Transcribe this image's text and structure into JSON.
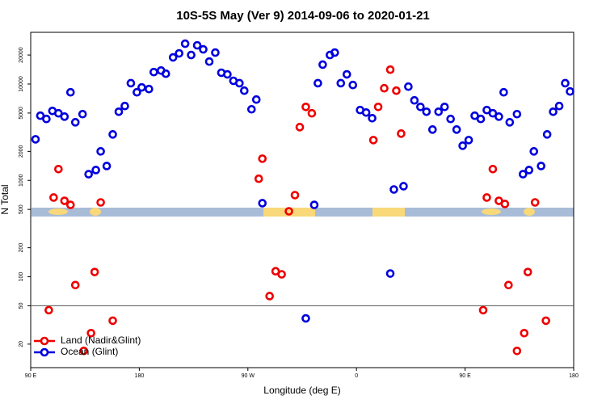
{
  "chart_data": {
    "type": "scatter",
    "title": "10S-5S May (Ver 9)   2014-09-06 to 2020-01-21",
    "x_label": "Longitude (deg E)",
    "y_label": "N Total",
    "log_y": true,
    "legend": "bottom-left",
    "hlines": [
      50
    ],
    "xlim": [
      90,
      540
    ],
    "xticks": [
      {
        "value": 90,
        "label": "90 E"
      },
      180,
      {
        "value": 270,
        "label": "90 W"
      },
      {
        "value": 360,
        "label": "0"
      },
      {
        "value": 450,
        "label": "90 E"
      },
      {
        "value": 540,
        "label": "180"
      }
    ],
    "ylim": [
      11.4,
      34400
    ],
    "yticks": [
      20,
      50,
      100,
      200,
      500,
      1000,
      2000,
      5000,
      10000,
      20000
    ],
    "series": [
      {
        "name": "Land (Nadir&Glint)",
        "color": "#ee0000",
        "x": [
          105,
          109,
          113,
          118,
          123,
          127,
          134,
          140,
          143,
          148,
          158,
          279,
          282,
          288,
          293,
          298,
          304,
          309,
          313,
          318,
          323,
          374,
          378,
          383,
          388,
          393,
          397,
          465,
          468,
          473,
          478,
          483,
          486,
          493,
          499,
          502,
          508,
          517
        ],
        "values": [
          45,
          664,
          1310,
          614,
          557,
          82,
          17,
          26,
          112,
          591,
          35,
          1040,
          1680,
          63,
          114,
          106,
          478,
          703,
          3570,
          5790,
          4970,
          2620,
          5790,
          9040,
          14100,
          8530,
          3060,
          45,
          664,
          1310,
          614,
          569,
          82,
          17,
          26,
          112,
          591,
          35
        ]
      },
      {
        "name": "Ocean (Glint)",
        "color": "#0000dd",
        "x": [
          94,
          98,
          103,
          108,
          113,
          118,
          123,
          127,
          133,
          138,
          144,
          148,
          153,
          158,
          163,
          168,
          173,
          178,
          182,
          188,
          192,
          198,
          202,
          208,
          213,
          218,
          223,
          228,
          233,
          238,
          243,
          248,
          253,
          258,
          263,
          267,
          273,
          277,
          282,
          325,
          318,
          328,
          332,
          338,
          342,
          347,
          352,
          357,
          363,
          368,
          373,
          388,
          391,
          399,
          403,
          408,
          413,
          418,
          423,
          428,
          433,
          438,
          443,
          448,
          453,
          458,
          463,
          468,
          473,
          478,
          482,
          487,
          493,
          498,
          503,
          507,
          513,
          518,
          523,
          528,
          533,
          537
        ],
        "values": [
          2670,
          4690,
          4340,
          5260,
          4970,
          4590,
          8210,
          4010,
          4870,
          1160,
          1280,
          2000,
          1410,
          3000,
          5160,
          5910,
          10200,
          8210,
          9230,
          8870,
          13300,
          13800,
          12800,
          18900,
          20800,
          26200,
          20000,
          25200,
          22900,
          17100,
          21200,
          13100,
          12600,
          10800,
          10200,
          8530,
          5470,
          6900,
          580,
          557,
          37,
          10200,
          15900,
          20000,
          21200,
          10200,
          12600,
          9770,
          5370,
          5060,
          4420,
          108,
          805,
          870,
          9400,
          6770,
          5790,
          5160,
          3370,
          5160,
          5790,
          4340,
          3370,
          2290,
          2620,
          4690,
          4340,
          5370,
          4970,
          4590,
          8210,
          4010,
          4870,
          1160,
          1280,
          2000,
          1410,
          3000,
          5160,
          5910,
          10200,
          8370
        ]
      }
    ]
  }
}
